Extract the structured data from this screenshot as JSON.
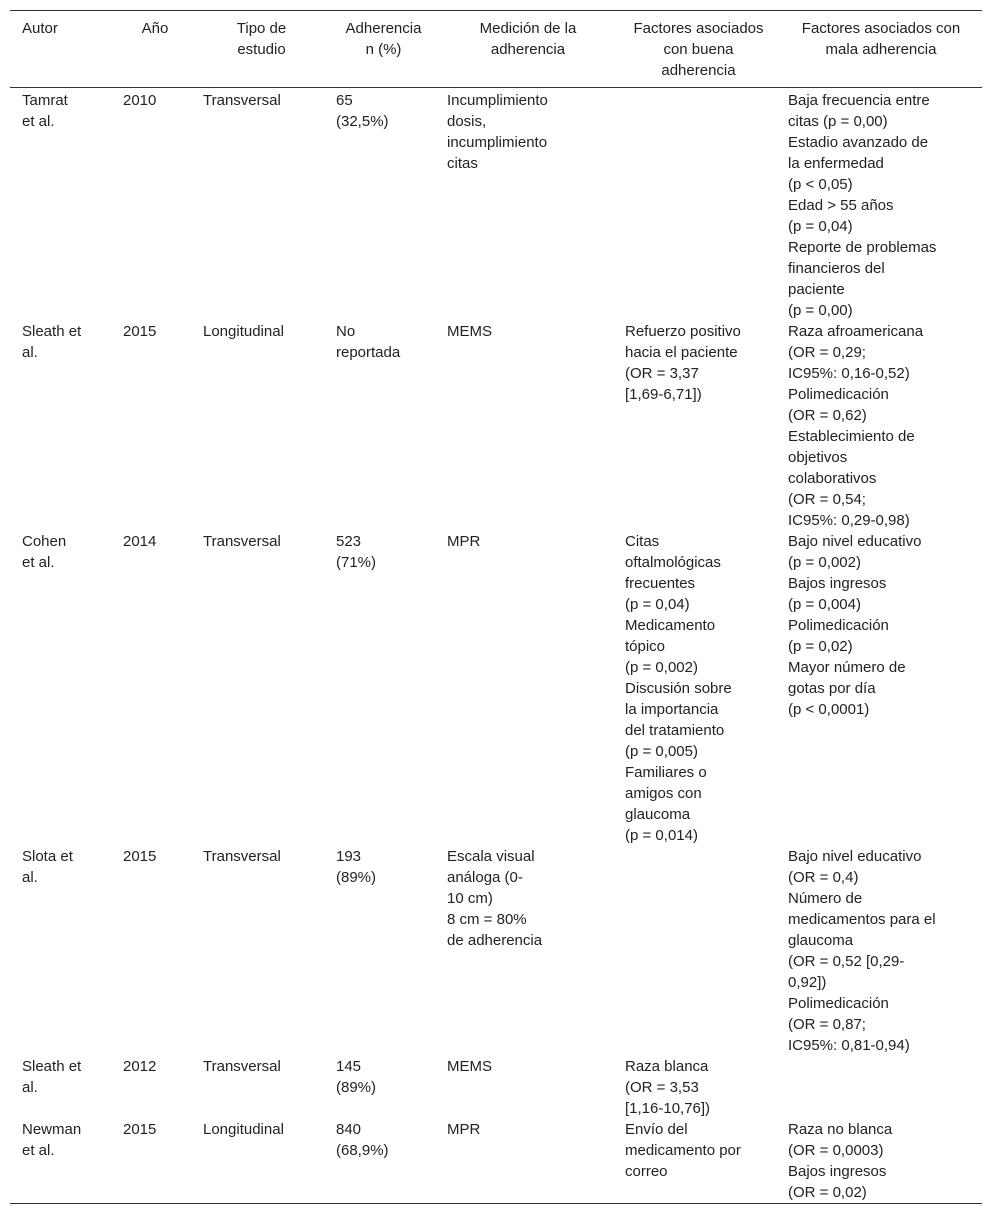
{
  "table": {
    "header": [
      [
        "Autor"
      ],
      [
        "Año"
      ],
      [
        "Tipo de",
        "estudio"
      ],
      [
        "Adherencia",
        "n (%)"
      ],
      [
        "Medición de la",
        "adherencia"
      ],
      [
        "Factores asociados",
        "con buena",
        "adherencia"
      ],
      [
        "Factores asociados con",
        "mala adherencia"
      ]
    ],
    "rows": [
      [
        [
          "Tamrat",
          "et al."
        ],
        [
          "2010"
        ],
        [
          "Transversal"
        ],
        [
          "65",
          "(32,5%)"
        ],
        [
          "Incumplimiento",
          "dosis,",
          "incumplimiento",
          "citas"
        ],
        [],
        [
          "Baja frecuencia entre",
          "citas (p = 0,00)",
          "Estadio avanzado de",
          "la enfermedad",
          "(p < 0,05)",
          "Edad > 55 años",
          "(p = 0,04)",
          "Reporte de problemas",
          "financieros del",
          "paciente",
          "(p = 0,00)"
        ]
      ],
      [
        [
          "Sleath et",
          "al."
        ],
        [
          "2015"
        ],
        [
          "Longitudinal"
        ],
        [
          "No",
          "reportada"
        ],
        [
          "MEMS"
        ],
        [
          "Refuerzo positivo",
          "hacia el paciente",
          "(OR = 3,37",
          "[1,69-6,71])"
        ],
        [
          "Raza afroamericana",
          "(OR = 0,29;",
          "IC95%: 0,16-0,52)",
          "Polimedicación",
          "(OR = 0,62)",
          "Establecimiento de",
          "objetivos",
          "colaborativos",
          "(OR = 0,54;",
          "IC95%: 0,29-0,98)"
        ]
      ],
      [
        [
          "Cohen",
          "et al."
        ],
        [
          "2014"
        ],
        [
          "Transversal"
        ],
        [
          "523",
          "(71%)"
        ],
        [
          "MPR"
        ],
        [
          "Citas",
          "oftalmológicas",
          "frecuentes",
          "(p = 0,04)",
          "Medicamento",
          "tópico",
          "(p = 0,002)",
          "Discusión sobre",
          "la importancia",
          "del tratamiento",
          "(p = 0,005)",
          "Familiares o",
          "amigos con",
          "glaucoma",
          "(p = 0,014)"
        ],
        [
          "Bajo nivel educativo",
          "(p = 0,002)",
          "Bajos ingresos",
          "(p = 0,004)",
          "Polimedicación",
          "(p = 0,02)",
          "Mayor número de",
          "gotas por día",
          "(p < 0,0001)"
        ]
      ],
      [
        [
          "Slota et",
          "al."
        ],
        [
          "2015"
        ],
        [
          "Transversal"
        ],
        [
          "193",
          "(89%)"
        ],
        [
          "Escala visual",
          "análoga (0-",
          "10 cm)",
          "8 cm = 80%",
          "de adherencia"
        ],
        [],
        [
          "Bajo nivel educativo",
          "(OR = 0,4)",
          "Número de",
          "medicamentos para el",
          "glaucoma",
          "(OR = 0,52 [0,29-",
          "0,92])",
          "Polimedicación",
          "(OR = 0,87;",
          "IC95%: 0,81-0,94)"
        ]
      ],
      [
        [
          "Sleath et",
          "al."
        ],
        [
          "2012"
        ],
        [
          "Transversal"
        ],
        [
          "145",
          "(89%)"
        ],
        [
          "MEMS"
        ],
        [
          "Raza blanca",
          "(OR = 3,53",
          "[1,16-10,76])"
        ],
        []
      ],
      [
        [
          "Newman",
          "et al."
        ],
        [
          "2015"
        ],
        [
          "Longitudinal"
        ],
        [
          "840",
          "(68,9%)"
        ],
        [
          "MPR"
        ],
        [
          "Envío del",
          "medicamento por",
          "correo"
        ],
        [
          "Raza no blanca",
          "(OR = 0,0003)",
          "Bajos ingresos",
          "(OR = 0,02)"
        ]
      ]
    ]
  }
}
